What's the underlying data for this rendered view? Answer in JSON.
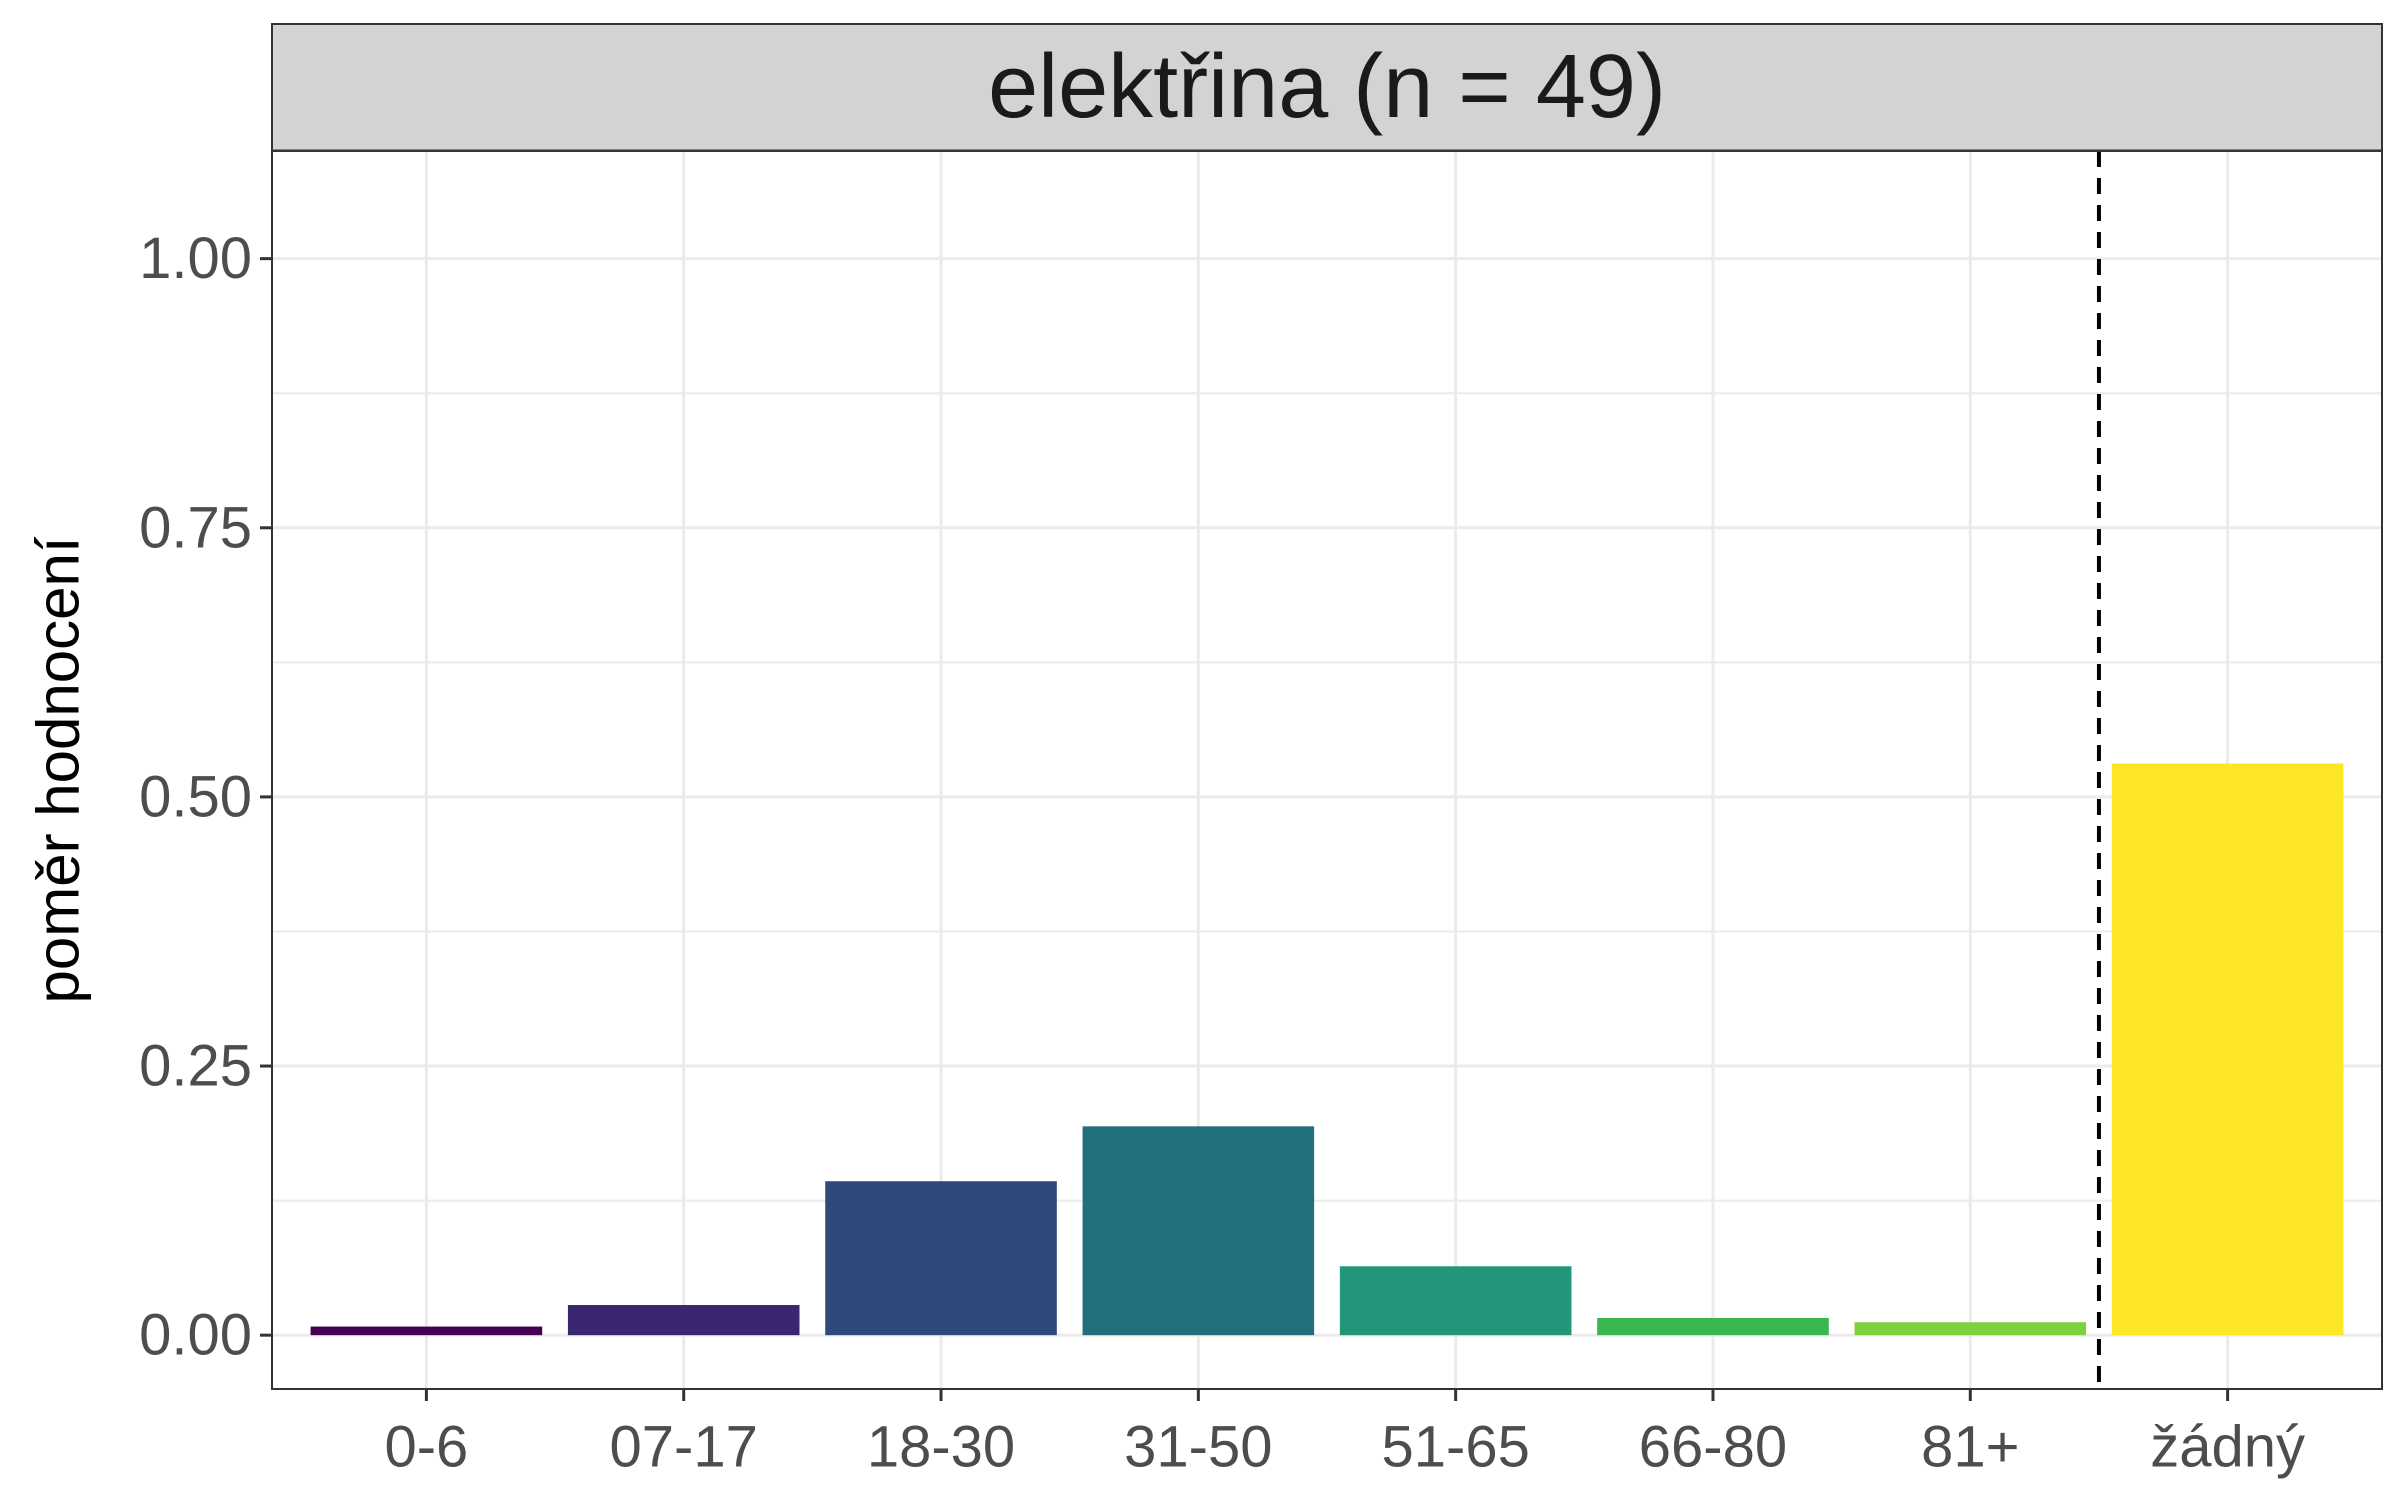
{
  "chart_data": {
    "type": "bar",
    "title": "elektřina (n = 49)",
    "xlabel": "",
    "ylabel": "poměr hodnocení",
    "categories": [
      "0-6",
      "07-17",
      "18-30",
      "31-50",
      "51-65",
      "66-80",
      "81+",
      "žádný"
    ],
    "values": [
      0.008,
      0.028,
      0.143,
      0.194,
      0.064,
      0.016,
      0.012,
      0.531
    ],
    "colors": [
      "#440154",
      "#3B2670",
      "#2D4A7A",
      "#21707C",
      "#21967A",
      "#3BB752",
      "#7BD13E",
      "#FDE625"
    ],
    "ylim": [
      -0.05,
      1.1
    ],
    "yticks": [
      0,
      0.25,
      0.5,
      0.75,
      1.0
    ],
    "ytick_labels": [
      "0.00",
      "0.25",
      "0.50",
      "0.75",
      "1.00"
    ],
    "reference_line": {
      "between": [
        "81+",
        "žádný"
      ],
      "style": "dashed"
    },
    "grid": true,
    "legend": "none"
  }
}
